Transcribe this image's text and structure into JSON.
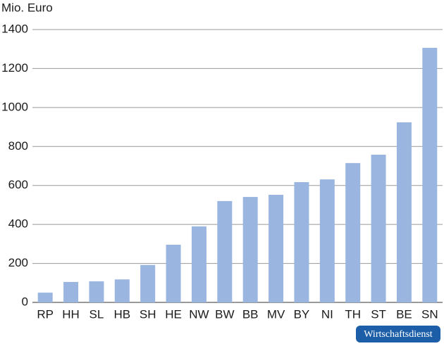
{
  "chart_data": {
    "type": "bar",
    "y_label": "Mio. Euro",
    "categories": [
      "RP",
      "HH",
      "SL",
      "HB",
      "SH",
      "HE",
      "NW",
      "BW",
      "BB",
      "MV",
      "BY",
      "NI",
      "TH",
      "ST",
      "BE",
      "SN"
    ],
    "values": [
      50,
      105,
      108,
      118,
      192,
      296,
      390,
      520,
      541,
      552,
      617,
      631,
      715,
      758,
      924,
      1306
    ],
    "color": "#9ab5e0",
    "ylim": [
      0,
      1400
    ],
    "yticks": [
      0,
      200,
      400,
      600,
      800,
      1000,
      1200,
      1400
    ],
    "grid": true,
    "source": "Wirtschaftsdienst"
  }
}
